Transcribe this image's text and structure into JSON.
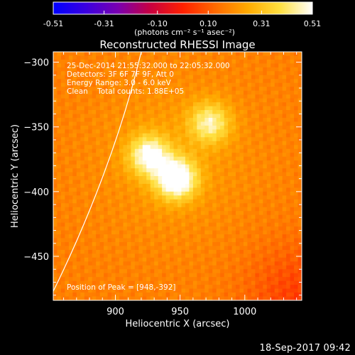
{
  "chart_data": {
    "type": "heatmap",
    "title": "Reconstructed RHESSI Image",
    "xlabel": "Heliocentric X (arcsec)",
    "ylabel": "Heliocentric Y (arcsec)",
    "xlim": [
      852,
      1044
    ],
    "ylim": [
      -484,
      -292
    ],
    "x_ticks": [
      900,
      950,
      1000
    ],
    "y_ticks": [
      -300,
      -350,
      -400,
      -450
    ],
    "colorbar": {
      "label": "(photons cm⁻² s⁻¹ asec⁻²)",
      "range": [
        -0.51,
        0.51
      ],
      "ticks": [
        "-0.51",
        "-0.31",
        "-0.10",
        "0.10",
        "0.31",
        "0.51"
      ],
      "colormap": [
        "#0000ff",
        "#3a00e0",
        "#7a00b0",
        "#c80040",
        "#ff2000",
        "#ff6a00",
        "#ffaa00",
        "#ffe040",
        "#ffffff"
      ]
    },
    "annotations": [
      "25-Dec-2014 21:55:32.000 to 22:05:32.000",
      "Detectors: 3F 6F 7F 9F, Att 0",
      "Energy Range: 3.0 - 6.0 keV",
      "Clean    Total counts: 1.88E+05"
    ],
    "peak_label": "Position of Peak = [948,-392]",
    "peak": [
      948,
      -392
    ],
    "sources": [
      {
        "x": 947,
        "y": -390,
        "amp": 0.51
      },
      {
        "x": 926,
        "y": -372,
        "amp": 0.42
      },
      {
        "x": 973,
        "y": -347,
        "amp": 0.36
      }
    ],
    "limb_curve": {
      "x": [
        852,
        880,
        905,
        920
      ],
      "y": [
        -477,
        -420,
        -355,
        -292
      ]
    },
    "background_level": 0.17
  },
  "footer": {
    "timestamp": "18-Sep-2017 09:42"
  }
}
